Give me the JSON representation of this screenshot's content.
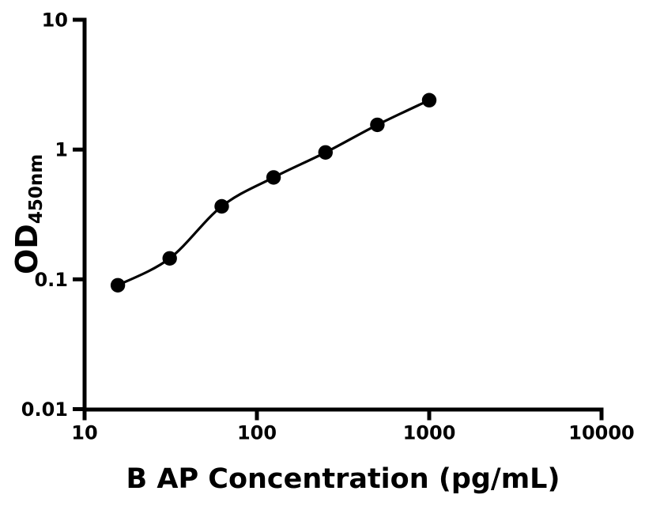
{
  "figure": {
    "background_color": "#ffffff",
    "foreground_color": "#000000"
  },
  "chart_data": {
    "type": "scatter",
    "xlabel": "B AP Concentration (pg/mL)",
    "ylabel": {
      "main": "OD",
      "sub": "450nm"
    },
    "xscale": "log",
    "yscale": "log",
    "xlim": [
      10,
      10000
    ],
    "ylim": [
      0.01,
      10
    ],
    "xticks": {
      "values": [
        10,
        100,
        1000,
        10000
      ],
      "labels": [
        "10",
        "100",
        "1000",
        "10000"
      ]
    },
    "yticks": {
      "values": [
        10,
        1,
        0.1,
        0.01
      ],
      "labels": [
        "10",
        "1",
        "0.1",
        "0.01"
      ]
    },
    "grid": false,
    "series": [
      {
        "marker": "filled-circle",
        "color": "#000000",
        "fit_line": true,
        "points": [
          {
            "x": 15.6,
            "y": 0.09
          },
          {
            "x": 31.2,
            "y": 0.145
          },
          {
            "x": 62.5,
            "y": 0.365
          },
          {
            "x": 125,
            "y": 0.61
          },
          {
            "x": 250,
            "y": 0.95
          },
          {
            "x": 500,
            "y": 1.55
          },
          {
            "x": 1000,
            "y": 2.4
          }
        ]
      }
    ]
  }
}
